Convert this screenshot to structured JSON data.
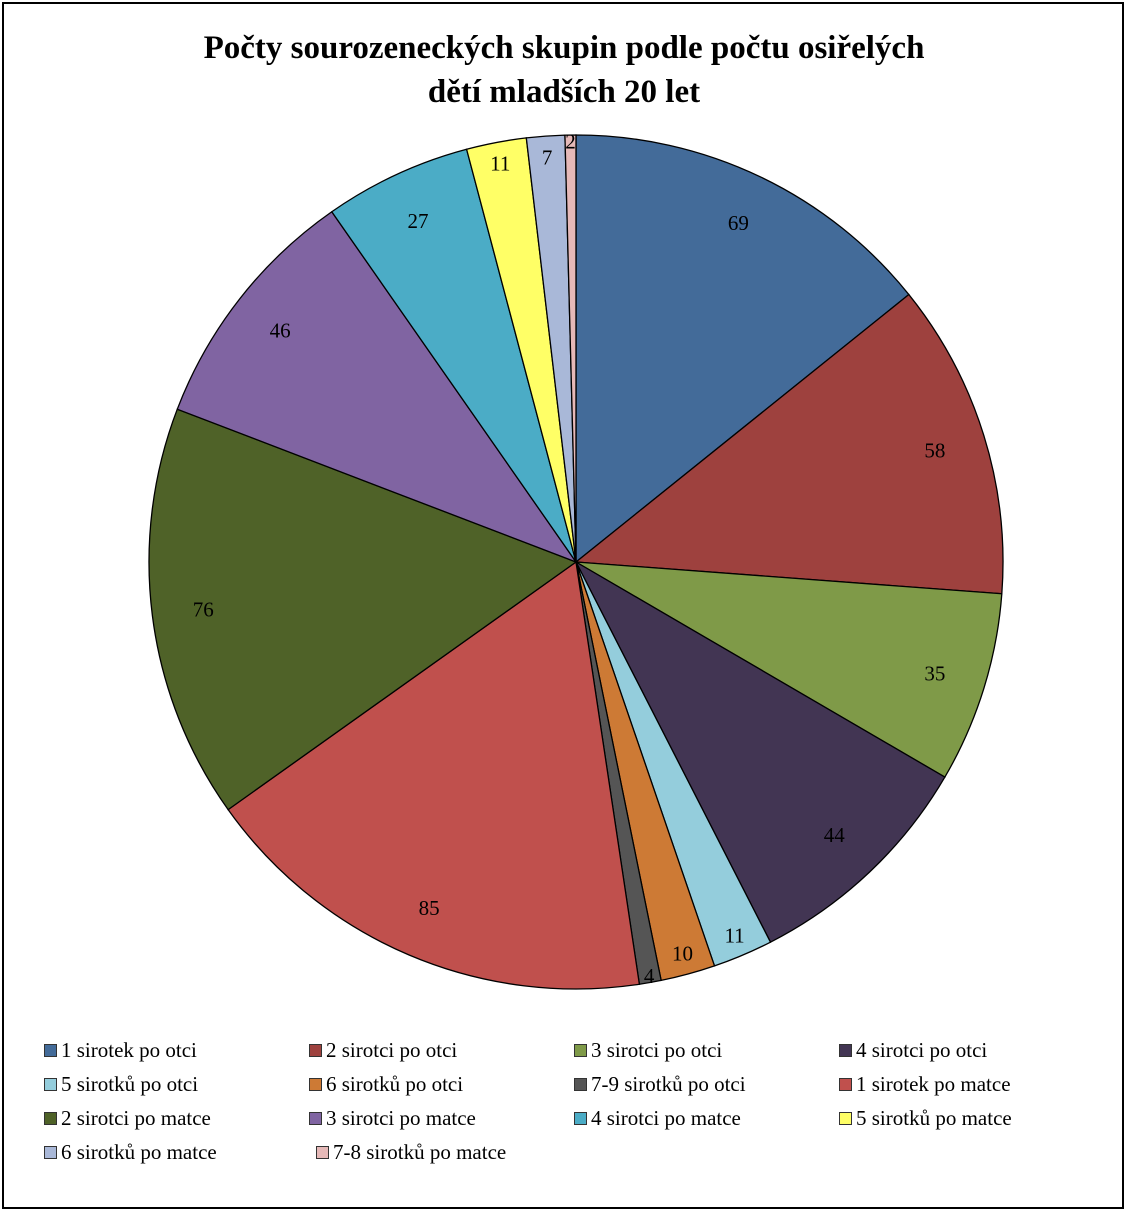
{
  "chart_data": {
    "type": "pie",
    "title_lines": [
      "Počty sourozeneckých skupin podle počtu osiřelých",
      "dětí mladších 20 let"
    ],
    "legend_position": "bottom",
    "categories": [
      "1 sirotek po otci",
      "2 sirotci po otci",
      "3 sirotci po otci",
      "4 sirotci po otci",
      "5 sirotků po otci",
      "6 sirotků po otci",
      "7-9 sirotků po otci",
      "1 sirotek po matce",
      "2 sirotci po matce",
      "3 sirotci po matce",
      "4 sirotci po matce",
      "5 sirotků po matce",
      "6 sirotků po matce",
      "7-8 sirotků po matce"
    ],
    "values": [
      69,
      58,
      35,
      44,
      11,
      10,
      4,
      85,
      76,
      46,
      27,
      11,
      7,
      2
    ],
    "colors": [
      "#436b99",
      "#9e413e",
      "#7f9a48",
      "#423553",
      "#94cddc",
      "#cd7a35",
      "#555555",
      "#c0504d",
      "#4f6228",
      "#8064a2",
      "#4bacc6",
      "#ffff66",
      "#a9b8d8",
      "#e6b9b8"
    ]
  }
}
